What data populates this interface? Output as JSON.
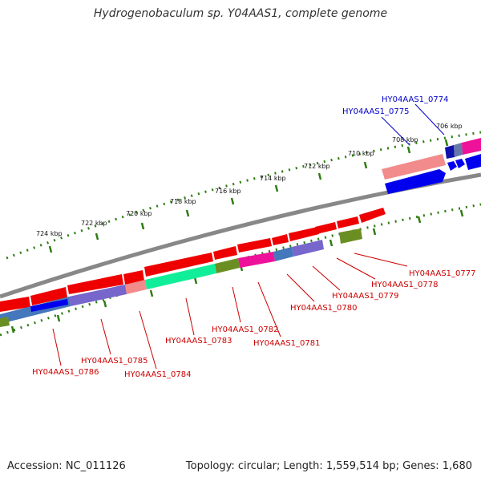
{
  "title": "Hydrogenobaculum sp. Y04AAS1, complete genome",
  "footer": {
    "accession": "Accession: NC_011126",
    "stats": "Topology: circular; Length: 1,559,514 bp; Genes: 1,680"
  },
  "colors": {
    "backbone": "#888888",
    "tick": "#2e7d12",
    "label_reverse": "#cc0000",
    "label_forward": "#0000cc"
  },
  "scale": {
    "ticks": [
      {
        "label": "706 kbp"
      },
      {
        "label": "708 kbp"
      },
      {
        "label": "710 kbp"
      },
      {
        "label": "712 kbp"
      },
      {
        "label": "714 kbp"
      },
      {
        "label": "716 kbp"
      },
      {
        "label": "718 kbp"
      },
      {
        "label": "720 kbp"
      },
      {
        "label": "722 kbp"
      },
      {
        "label": "724 kbp"
      }
    ]
  },
  "gene_labels": [
    {
      "text": "HY04AAS1_0774",
      "strand": "forward"
    },
    {
      "text": "HY04AAS1_0775",
      "strand": "forward"
    },
    {
      "text": "HY04AAS1_0777",
      "strand": "reverse"
    },
    {
      "text": "HY04AAS1_0778",
      "strand": "reverse"
    },
    {
      "text": "HY04AAS1_0779",
      "strand": "reverse"
    },
    {
      "text": "HY04AAS1_0780",
      "strand": "reverse"
    },
    {
      "text": "HY04AAS1_0781",
      "strand": "reverse"
    },
    {
      "text": "HY04AAS1_0782",
      "strand": "reverse"
    },
    {
      "text": "HY04AAS1_0783",
      "strand": "reverse"
    },
    {
      "text": "HY04AAS1_0784",
      "strand": "reverse"
    },
    {
      "text": "HY04AAS1_0785",
      "strand": "reverse"
    },
    {
      "text": "HY04AAS1_0786",
      "strand": "reverse"
    }
  ]
}
